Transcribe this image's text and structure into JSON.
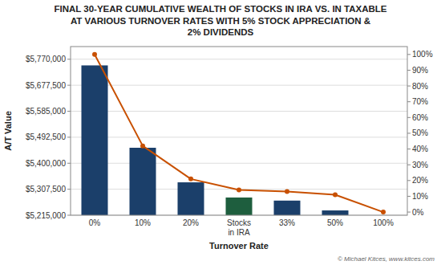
{
  "chart_data": {
    "type": "bar",
    "title": "FINAL 30-YEAR CUMULATIVE WEALTH OF STOCKS IN IRA VS. IN TAXABLE\nAT VARIOUS TURNOVER RATES WITH 5% STOCK APPRECIATION &\n2% DIVIDENDS",
    "categories": [
      "0%",
      "10%",
      "20%",
      "Stocks\nin IRA",
      "33%",
      "50%",
      "100%"
    ],
    "series": [
      {
        "type": "bar",
        "values": [
          5748000,
          5455000,
          5332000,
          5278000,
          5267000,
          5232000,
          null
        ],
        "colors": [
          "#1b3f6a",
          "#1b3f6a",
          "#1b3f6a",
          "#1e5e3e",
          "#1b3f6a",
          "#1b3f6a",
          null
        ]
      },
      {
        "type": "line",
        "axis": "y2",
        "color": "#c85000",
        "marker": "circle",
        "values": [
          100,
          42,
          21,
          14,
          13,
          11,
          0
        ]
      }
    ],
    "xlabel": "Turnover Rate",
    "ylabel": "A/T Value",
    "ylim": [
      5215000,
      5815000
    ],
    "yticks": [
      {
        "value": 5215000,
        "label": "$5,215,000"
      },
      {
        "value": 5307500,
        "label": "$5,307,500"
      },
      {
        "value": 5400000,
        "label": "$5,400,000"
      },
      {
        "value": 5492500,
        "label": "$5,492,500"
      },
      {
        "value": 5585000,
        "label": "$5,585,000"
      },
      {
        "value": 5677500,
        "label": "$5,677,500"
      },
      {
        "value": 5770000,
        "label": "$5,770,000"
      }
    ],
    "y2lim": [
      -2,
      105
    ],
    "y2ticks": [
      {
        "value": 0,
        "label": "0%"
      },
      {
        "value": 10,
        "label": "10%"
      },
      {
        "value": 20,
        "label": "20%"
      },
      {
        "value": 30,
        "label": "30%"
      },
      {
        "value": 40,
        "label": "40%"
      },
      {
        "value": 50,
        "label": "50%"
      },
      {
        "value": 60,
        "label": "60%"
      },
      {
        "value": 70,
        "label": "70%"
      },
      {
        "value": 80,
        "label": "80%"
      },
      {
        "value": 90,
        "label": "90%"
      },
      {
        "value": 100,
        "label": "100%"
      }
    ],
    "grid": true,
    "annotations": [
      "© Michael Kitces, www.kitces.com"
    ]
  }
}
